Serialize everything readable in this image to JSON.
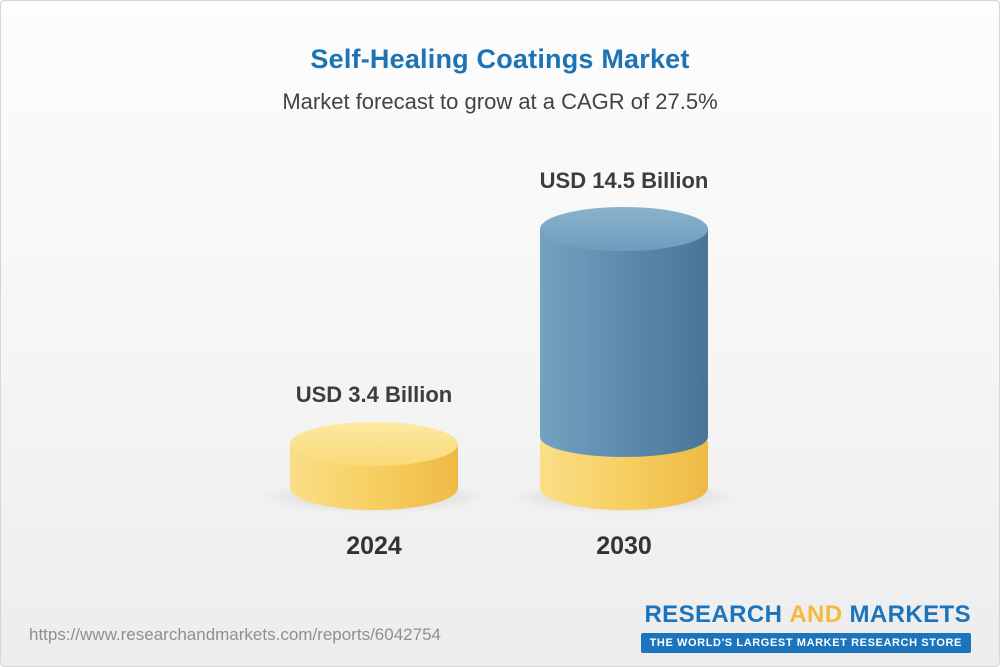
{
  "chart_data": {
    "type": "bar",
    "title": "Self-Healing Coatings Market",
    "subtitle": "Market forecast to grow at a CAGR of 27.5%",
    "cagr_percent": 27.5,
    "unit": "USD Billion",
    "categories": [
      "2024",
      "2030"
    ],
    "values": [
      3.4,
      14.5
    ],
    "bars": [
      {
        "category": "2024",
        "value": 3.4,
        "label": "USD 3.4 Billion",
        "color": "#F7CF61"
      },
      {
        "category": "2030",
        "value": 14.5,
        "label": "USD 14.5 Billion",
        "color": "#5A89AC",
        "base_color": "#F7CF61"
      }
    ],
    "grid": false,
    "legend": "none",
    "axes": "none",
    "style": "3d-cylinder"
  },
  "footer": {
    "url": "https://www.researchandmarkets.com/reports/6042754",
    "logo": {
      "word1": "RESEARCH",
      "word2": "AND",
      "word3": "MARKETS",
      "tagline": "THE WORLD'S LARGEST MARKET RESEARCH STORE"
    }
  },
  "colors": {
    "title_blue": "#1C74B4",
    "text_dark": "#3D3D3D",
    "bar_yellow": "#F7CF61",
    "bar_blue": "#5A89AC",
    "logo_blue": "#1C75BC",
    "logo_gold": "#F5B940",
    "background": "#F3F3F3"
  }
}
